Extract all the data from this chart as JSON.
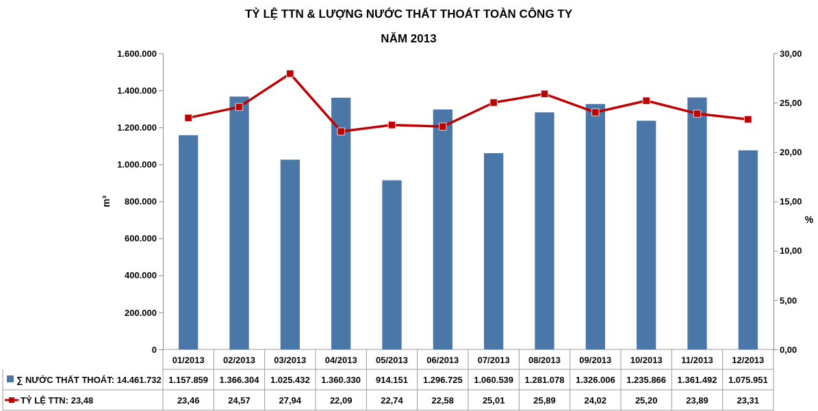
{
  "chart_data": {
    "type": "bar",
    "title": "TỶ LỆ TTN & LƯỢNG NƯỚC THẤT THOÁT TOÀN CÔNG TY",
    "subtitle": "NĂM 2013",
    "ylabel": "m³",
    "y2label": "%",
    "categories": [
      "01/2013",
      "02/2013",
      "03/2013",
      "04/2013",
      "05/2013",
      "06/2013",
      "07/2013",
      "08/2013",
      "09/2013",
      "10/2013",
      "11/2013",
      "12/2013"
    ],
    "series": [
      {
        "name": "∑ NƯỚC THẤT THOÁT: 14.461.732",
        "color": "#4a76a8",
        "values": [
          1157859,
          1366304,
          1025432,
          1360330,
          914151,
          1296725,
          1060539,
          1281078,
          1326006,
          1235866,
          1361492,
          1075951
        ],
        "value_labels": [
          "1.157.859",
          "1.366.304",
          "1.025.432",
          "1.360.330",
          "914.151",
          "1.296.725",
          "1.060.539",
          "1.281.078",
          "1.326.006",
          "1.235.866",
          "1.361.492",
          "1.075.951"
        ]
      },
      {
        "name": "TỶ LỆ TTN: 23,48",
        "type": "line",
        "axis": "y2",
        "color": "#c00000",
        "marker": "square",
        "values": [
          23.46,
          24.57,
          27.94,
          22.09,
          22.74,
          22.58,
          25.01,
          25.89,
          24.02,
          25.2,
          23.89,
          23.31
        ],
        "value_labels": [
          "23,46",
          "24,57",
          "27,94",
          "22,09",
          "22,74",
          "22,58",
          "25,01",
          "25,89",
          "24,02",
          "25,20",
          "23,89",
          "23,31"
        ]
      }
    ],
    "ylim": [
      0,
      1600000
    ],
    "yticks": [
      0,
      {
        "value": 200000,
        "label": "200.000"
      },
      {
        "value": 400000,
        "label": "400.000"
      },
      {
        "value": 600000,
        "label": "600.000"
      },
      {
        "value": 800000,
        "label": "800.000"
      },
      {
        "value": 1000000,
        "label": "1.000.000"
      },
      {
        "value": 1200000,
        "label": "1.200.000"
      },
      {
        "value": 1400000,
        "label": "1.400.000"
      },
      {
        "value": 1600000,
        "label": "1.600.000"
      }
    ],
    "y2lim": [
      0,
      30
    ],
    "y2ticks": [
      {
        "value": 0,
        "label": "0,00"
      },
      {
        "value": 5,
        "label": "5,00"
      },
      {
        "value": 10,
        "label": "10,00"
      },
      {
        "value": 15,
        "label": "15,00"
      },
      {
        "value": 20,
        "label": "20,00"
      },
      {
        "value": 25,
        "label": "25,00"
      },
      {
        "value": 30,
        "label": "30,00"
      }
    ],
    "legend": "bottom left",
    "grid": false
  }
}
